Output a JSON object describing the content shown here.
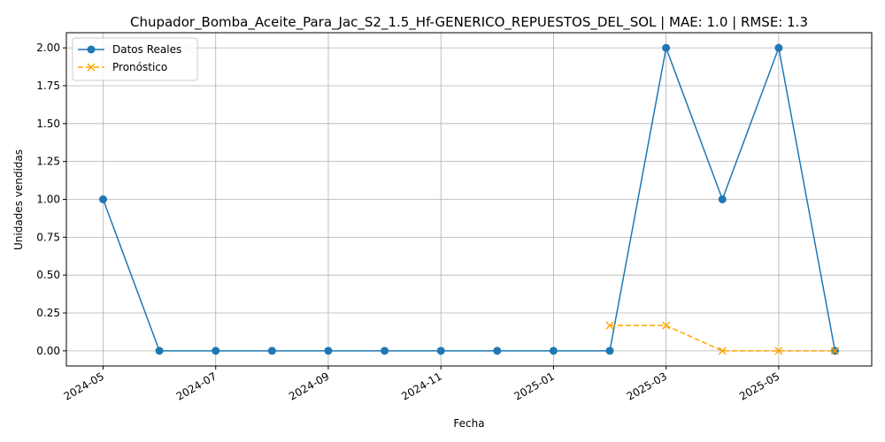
{
  "chart_data": {
    "type": "line",
    "title": "Chupador_Bomba_Aceite_Para_Jac_S2_1.5_Hf-GENERICO_REPUESTOS_DEL_SOL | MAE: 1.0 | RMSE: 1.3",
    "xlabel": "Fecha",
    "ylabel": "Unidades vendidas",
    "ylim": [
      -0.1,
      2.1
    ],
    "y_ticks": [
      "0.00",
      "0.25",
      "0.50",
      "0.75",
      "1.00",
      "1.25",
      "1.50",
      "1.75",
      "2.00"
    ],
    "x_ticks": [
      "2024-05",
      "2024-07",
      "2024-09",
      "2024-11",
      "2025-01",
      "2025-03",
      "2025-05"
    ],
    "grid": true,
    "legend_position": "top-left",
    "series": [
      {
        "name": "Datos Reales",
        "color": "#1f77b4",
        "style": "solid",
        "marker": "circle",
        "x": [
          "2024-05",
          "2024-06",
          "2024-07",
          "2024-08",
          "2024-09",
          "2024-10",
          "2024-11",
          "2024-12",
          "2025-01",
          "2025-02",
          "2025-03",
          "2025-04",
          "2025-05",
          "2025-06"
        ],
        "values": [
          1,
          0,
          0,
          0,
          0,
          0,
          0,
          0,
          0,
          0,
          2,
          1,
          2,
          0
        ]
      },
      {
        "name": "Pronóstico",
        "color": "#ffa500",
        "style": "dashed",
        "marker": "x",
        "x": [
          "2025-02",
          "2025-03",
          "2025-04",
          "2025-05",
          "2025-06"
        ],
        "values": [
          0.167,
          0.167,
          0,
          0,
          0
        ]
      }
    ]
  }
}
